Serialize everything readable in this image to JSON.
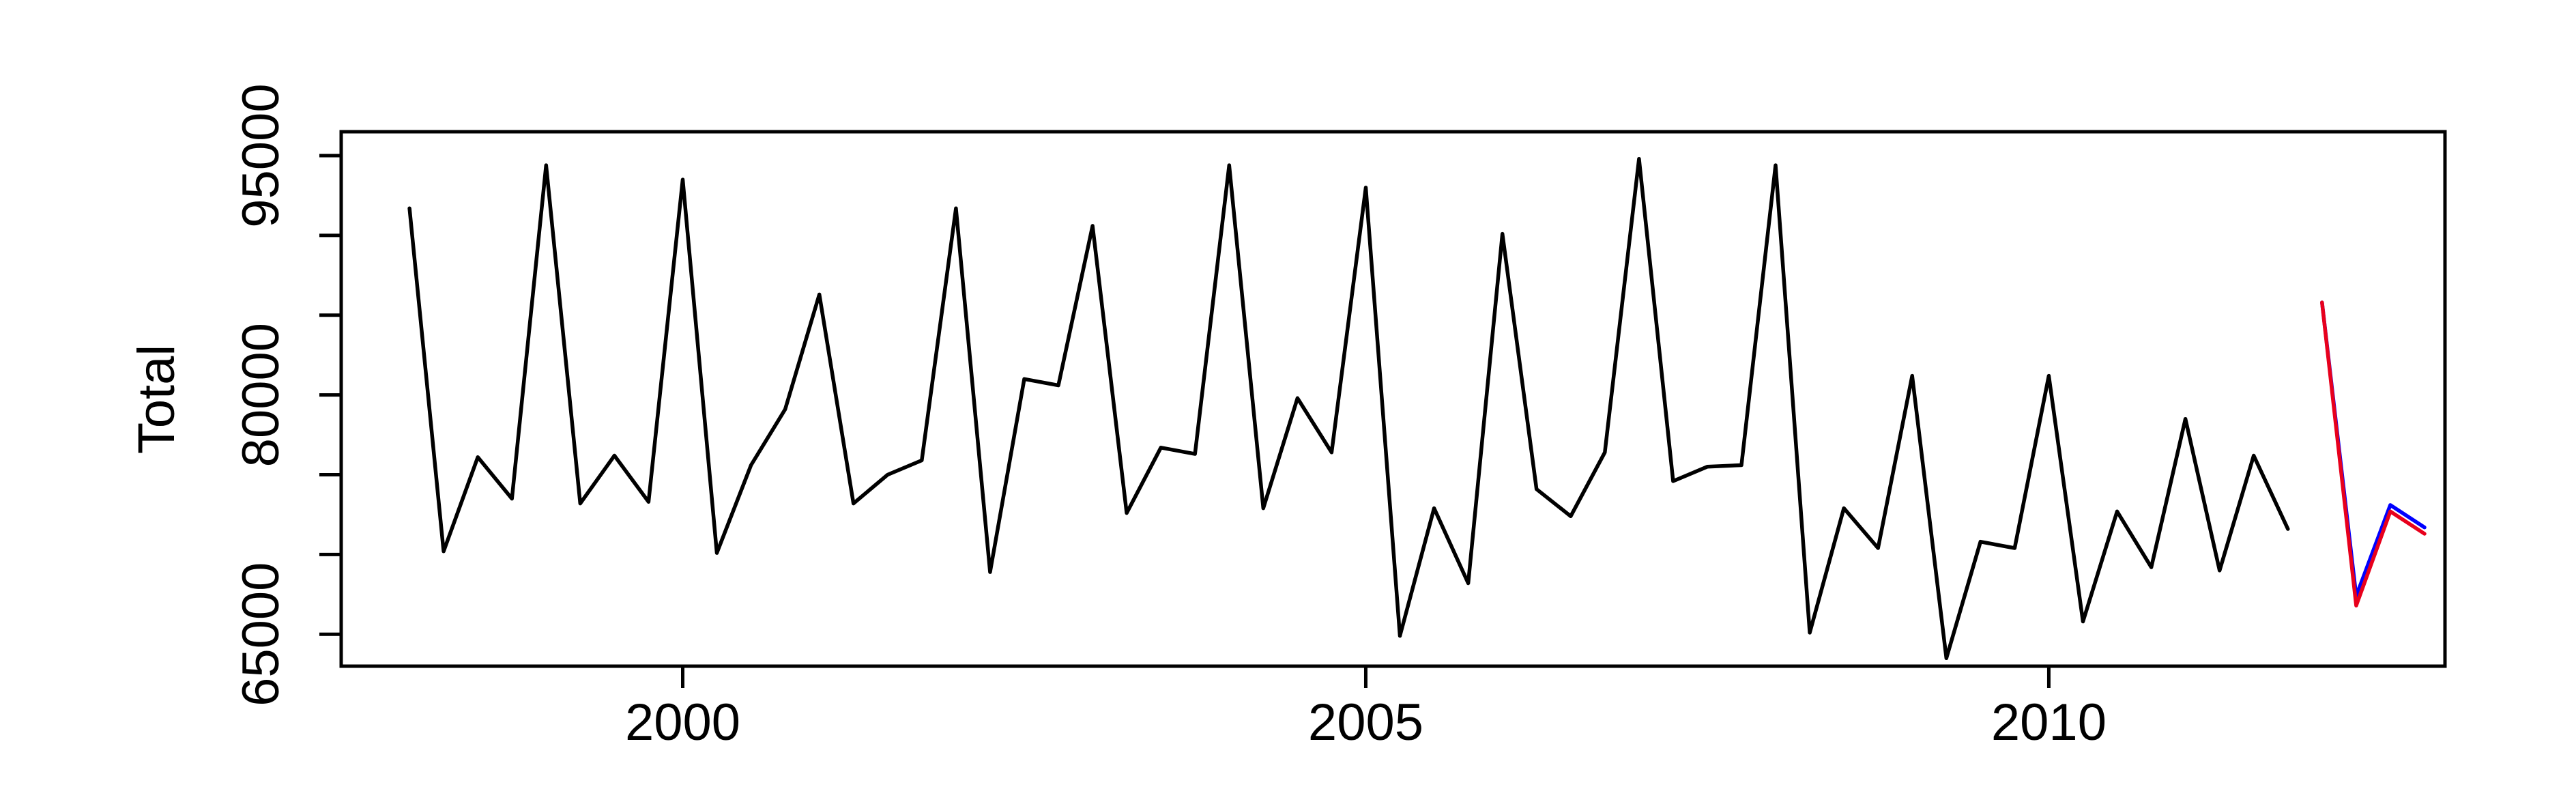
{
  "chart_data": {
    "type": "line",
    "title": "",
    "xlabel": "",
    "ylabel": "Total",
    "xlim": [
      1997.5,
      2012.9
    ],
    "ylim": [
      63000,
      96500
    ],
    "x_ticks": [
      2000,
      2005,
      2010
    ],
    "y_ticks": [
      65000,
      70000,
      75000,
      80000,
      85000,
      90000,
      95000
    ],
    "y_tick_labels": [
      "65000",
      "",
      "",
      "80000",
      "",
      "",
      "95000"
    ],
    "grid": false,
    "legend": "none",
    "series": [
      {
        "color": "#000000",
        "start": 1998.0,
        "step": 0.25,
        "values": [
          91700,
          70200,
          76100,
          73500,
          94400,
          73200,
          76200,
          73300,
          93500,
          70100,
          75600,
          79100,
          86300,
          73200,
          75000,
          75900,
          91700,
          68900,
          81000,
          80600,
          90600,
          72600,
          76700,
          76300,
          94400,
          72900,
          79800,
          76400,
          93000,
          64900,
          72900,
          68200,
          90100,
          74100,
          72400,
          76400,
          94800,
          74600,
          75500,
          75600,
          94400,
          65100,
          72900,
          70400,
          81200,
          63500,
          70800,
          70400,
          81200,
          65800,
          72700,
          69200,
          78500,
          69000,
          76200,
          71600
        ]
      },
      {
        "color": "#0000ff",
        "start": 2012.0,
        "step": 0.25,
        "values": [
          85800,
          67400,
          73100,
          71700
        ]
      },
      {
        "color": "#e8001c",
        "start": 2012.0,
        "step": 0.25,
        "values": [
          85800,
          66800,
          72700,
          71300
        ]
      }
    ]
  }
}
